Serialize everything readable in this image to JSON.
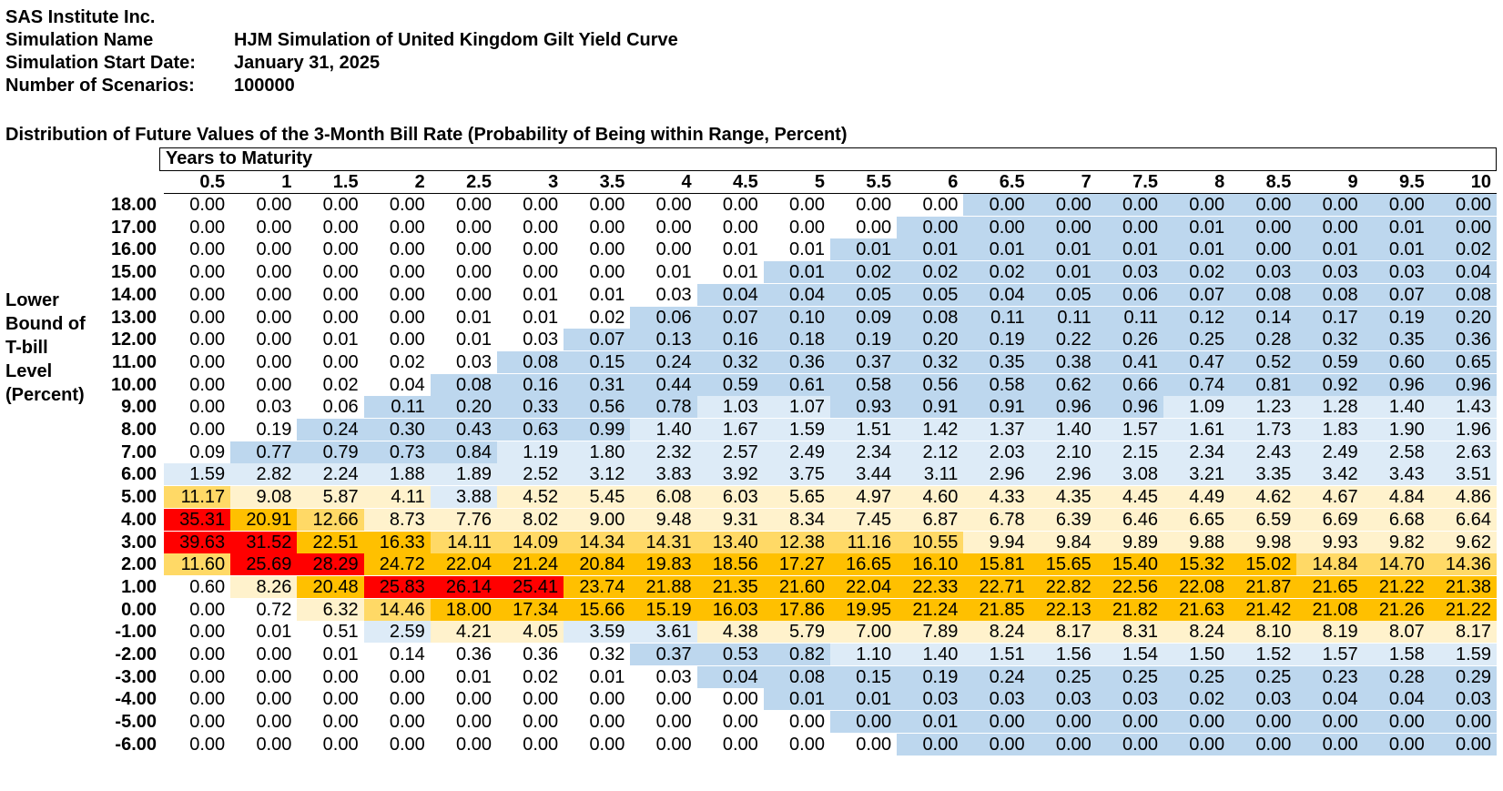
{
  "header": {
    "company": "SAS Institute Inc.",
    "sim_name_label": "Simulation Name",
    "sim_name": "HJM Simulation of United Kingdom Gilt Yield Curve",
    "start_label": "Simulation Start Date:",
    "start_date": "January 31, 2025",
    "scen_label": "Number of Scenarios:",
    "scenarios": "100000"
  },
  "table": {
    "title": "Distribution of Future Values of the 3-Month Bill Rate (Probability of Being within Range, Percent)",
    "col_group_label": "Years to Maturity",
    "row_group_label": [
      "Lower",
      "Bound of",
      "T-bill",
      "Level",
      "(Percent)"
    ],
    "columns": [
      "0.5",
      "1",
      "1.5",
      "2",
      "2.5",
      "3",
      "3.5",
      "4",
      "4.5",
      "5",
      "5.5",
      "6",
      "6.5",
      "7",
      "7.5",
      "8",
      "8.5",
      "9",
      "9.5",
      "10"
    ],
    "rows": [
      {
        "label": "18.00",
        "values": [
          "0.00",
          "0.00",
          "0.00",
          "0.00",
          "0.00",
          "0.00",
          "0.00",
          "0.00",
          "0.00",
          "0.00",
          "0.00",
          "0.00",
          "0.00",
          "0.00",
          "0.00",
          "0.00",
          "0.00",
          "0.00",
          "0.00",
          "0.00"
        ]
      },
      {
        "label": "17.00",
        "values": [
          "0.00",
          "0.00",
          "0.00",
          "0.00",
          "0.00",
          "0.00",
          "0.00",
          "0.00",
          "0.00",
          "0.00",
          "0.00",
          "0.00",
          "0.00",
          "0.00",
          "0.00",
          "0.01",
          "0.00",
          "0.00",
          "0.01",
          "0.00"
        ]
      },
      {
        "label": "16.00",
        "values": [
          "0.00",
          "0.00",
          "0.00",
          "0.00",
          "0.00",
          "0.00",
          "0.00",
          "0.00",
          "0.01",
          "0.01",
          "0.01",
          "0.01",
          "0.01",
          "0.01",
          "0.01",
          "0.01",
          "0.00",
          "0.01",
          "0.01",
          "0.02"
        ]
      },
      {
        "label": "15.00",
        "values": [
          "0.00",
          "0.00",
          "0.00",
          "0.00",
          "0.00",
          "0.00",
          "0.00",
          "0.01",
          "0.01",
          "0.01",
          "0.02",
          "0.02",
          "0.02",
          "0.01",
          "0.03",
          "0.02",
          "0.03",
          "0.03",
          "0.03",
          "0.04"
        ]
      },
      {
        "label": "14.00",
        "values": [
          "0.00",
          "0.00",
          "0.00",
          "0.00",
          "0.00",
          "0.01",
          "0.01",
          "0.03",
          "0.04",
          "0.04",
          "0.05",
          "0.05",
          "0.04",
          "0.05",
          "0.06",
          "0.07",
          "0.08",
          "0.08",
          "0.07",
          "0.08"
        ]
      },
      {
        "label": "13.00",
        "values": [
          "0.00",
          "0.00",
          "0.00",
          "0.00",
          "0.01",
          "0.01",
          "0.02",
          "0.06",
          "0.07",
          "0.10",
          "0.09",
          "0.08",
          "0.11",
          "0.11",
          "0.11",
          "0.12",
          "0.14",
          "0.17",
          "0.19",
          "0.20"
        ]
      },
      {
        "label": "12.00",
        "values": [
          "0.00",
          "0.00",
          "0.01",
          "0.00",
          "0.01",
          "0.03",
          "0.07",
          "0.13",
          "0.16",
          "0.18",
          "0.19",
          "0.20",
          "0.19",
          "0.22",
          "0.26",
          "0.25",
          "0.28",
          "0.32",
          "0.35",
          "0.36"
        ]
      },
      {
        "label": "11.00",
        "values": [
          "0.00",
          "0.00",
          "0.00",
          "0.02",
          "0.03",
          "0.08",
          "0.15",
          "0.24",
          "0.32",
          "0.36",
          "0.37",
          "0.32",
          "0.35",
          "0.38",
          "0.41",
          "0.47",
          "0.52",
          "0.59",
          "0.60",
          "0.65"
        ]
      },
      {
        "label": "10.00",
        "values": [
          "0.00",
          "0.00",
          "0.02",
          "0.04",
          "0.08",
          "0.16",
          "0.31",
          "0.44",
          "0.59",
          "0.61",
          "0.58",
          "0.56",
          "0.58",
          "0.62",
          "0.66",
          "0.74",
          "0.81",
          "0.92",
          "0.96",
          "0.96"
        ]
      },
      {
        "label": "9.00",
        "values": [
          "0.00",
          "0.03",
          "0.06",
          "0.11",
          "0.20",
          "0.33",
          "0.56",
          "0.78",
          "1.03",
          "1.07",
          "0.93",
          "0.91",
          "0.91",
          "0.96",
          "0.96",
          "1.09",
          "1.23",
          "1.28",
          "1.40",
          "1.43"
        ]
      },
      {
        "label": "8.00",
        "values": [
          "0.00",
          "0.19",
          "0.24",
          "0.30",
          "0.43",
          "0.63",
          "0.99",
          "1.40",
          "1.67",
          "1.59",
          "1.51",
          "1.42",
          "1.37",
          "1.40",
          "1.57",
          "1.61",
          "1.73",
          "1.83",
          "1.90",
          "1.96"
        ]
      },
      {
        "label": "7.00",
        "values": [
          "0.09",
          "0.77",
          "0.79",
          "0.73",
          "0.84",
          "1.19",
          "1.80",
          "2.32",
          "2.57",
          "2.49",
          "2.34",
          "2.12",
          "2.03",
          "2.10",
          "2.15",
          "2.34",
          "2.43",
          "2.49",
          "2.58",
          "2.63"
        ]
      },
      {
        "label": "6.00",
        "values": [
          "1.59",
          "2.82",
          "2.24",
          "1.88",
          "1.89",
          "2.52",
          "3.12",
          "3.83",
          "3.92",
          "3.75",
          "3.44",
          "3.11",
          "2.96",
          "2.96",
          "3.08",
          "3.21",
          "3.35",
          "3.42",
          "3.43",
          "3.51"
        ]
      },
      {
        "label": "5.00",
        "values": [
          "11.17",
          "9.08",
          "5.87",
          "4.11",
          "3.88",
          "4.52",
          "5.45",
          "6.08",
          "6.03",
          "5.65",
          "4.97",
          "4.60",
          "4.33",
          "4.35",
          "4.45",
          "4.49",
          "4.62",
          "4.67",
          "4.84",
          "4.86"
        ]
      },
      {
        "label": "4.00",
        "values": [
          "35.31",
          "20.91",
          "12.66",
          "8.73",
          "7.76",
          "8.02",
          "9.00",
          "9.48",
          "9.31",
          "8.34",
          "7.45",
          "6.87",
          "6.78",
          "6.39",
          "6.46",
          "6.65",
          "6.59",
          "6.69",
          "6.68",
          "6.64"
        ]
      },
      {
        "label": "3.00",
        "values": [
          "39.63",
          "31.52",
          "22.51",
          "16.33",
          "14.11",
          "14.09",
          "14.34",
          "14.31",
          "13.40",
          "12.38",
          "11.16",
          "10.55",
          "9.94",
          "9.84",
          "9.89",
          "9.88",
          "9.98",
          "9.93",
          "9.82",
          "9.62"
        ]
      },
      {
        "label": "2.00",
        "values": [
          "11.60",
          "25.69",
          "28.29",
          "24.72",
          "22.04",
          "21.24",
          "20.84",
          "19.83",
          "18.56",
          "17.27",
          "16.65",
          "16.10",
          "15.81",
          "15.65",
          "15.40",
          "15.32",
          "15.02",
          "14.84",
          "14.70",
          "14.36"
        ]
      },
      {
        "label": "1.00",
        "values": [
          "0.60",
          "8.26",
          "20.48",
          "25.83",
          "26.14",
          "25.41",
          "23.74",
          "21.88",
          "21.35",
          "21.60",
          "22.04",
          "22.33",
          "22.71",
          "22.82",
          "22.56",
          "22.08",
          "21.87",
          "21.65",
          "21.22",
          "21.38"
        ]
      },
      {
        "label": "0.00",
        "values": [
          "0.00",
          "0.72",
          "6.32",
          "14.46",
          "18.00",
          "17.34",
          "15.66",
          "15.19",
          "16.03",
          "17.86",
          "19.95",
          "21.24",
          "21.85",
          "22.13",
          "21.82",
          "21.63",
          "21.42",
          "21.08",
          "21.26",
          "21.22"
        ]
      },
      {
        "label": "-1.00",
        "values": [
          "0.00",
          "0.01",
          "0.51",
          "2.59",
          "4.21",
          "4.05",
          "3.59",
          "3.61",
          "4.38",
          "5.79",
          "7.00",
          "7.89",
          "8.24",
          "8.17",
          "8.31",
          "8.24",
          "8.10",
          "8.19",
          "8.07",
          "8.17"
        ]
      },
      {
        "label": "-2.00",
        "values": [
          "0.00",
          "0.00",
          "0.01",
          "0.14",
          "0.36",
          "0.36",
          "0.32",
          "0.37",
          "0.53",
          "0.82",
          "1.10",
          "1.40",
          "1.51",
          "1.56",
          "1.54",
          "1.50",
          "1.52",
          "1.57",
          "1.58",
          "1.59"
        ]
      },
      {
        "label": "-3.00",
        "values": [
          "0.00",
          "0.00",
          "0.00",
          "0.00",
          "0.01",
          "0.02",
          "0.01",
          "0.03",
          "0.04",
          "0.08",
          "0.15",
          "0.19",
          "0.24",
          "0.25",
          "0.25",
          "0.25",
          "0.25",
          "0.23",
          "0.28",
          "0.29"
        ]
      },
      {
        "label": "-4.00",
        "values": [
          "0.00",
          "0.00",
          "0.00",
          "0.00",
          "0.00",
          "0.00",
          "0.00",
          "0.00",
          "0.00",
          "0.01",
          "0.01",
          "0.03",
          "0.03",
          "0.03",
          "0.03",
          "0.02",
          "0.03",
          "0.04",
          "0.04",
          "0.03"
        ]
      },
      {
        "label": "-5.00",
        "values": [
          "0.00",
          "0.00",
          "0.00",
          "0.00",
          "0.00",
          "0.00",
          "0.00",
          "0.00",
          "0.00",
          "0.00",
          "0.00",
          "0.01",
          "0.00",
          "0.00",
          "0.00",
          "0.00",
          "0.00",
          "0.00",
          "0.00",
          "0.00"
        ]
      },
      {
        "label": "-6.00",
        "values": [
          "0.00",
          "0.00",
          "0.00",
          "0.00",
          "0.00",
          "0.00",
          "0.00",
          "0.00",
          "0.00",
          "0.00",
          "0.00",
          "0.00",
          "0.00",
          "0.00",
          "0.00",
          "0.00",
          "0.00",
          "0.00",
          "0.00",
          "0.00"
        ]
      }
    ],
    "colors": {
      "white": "#ffffff",
      "blue": "#bdd7ee",
      "light_blue": "#ddebf7",
      "light_yellow": "#fff2cc",
      "yellow": "#ffd966",
      "orange": "#ffc000",
      "red": "#ff0000"
    }
  }
}
